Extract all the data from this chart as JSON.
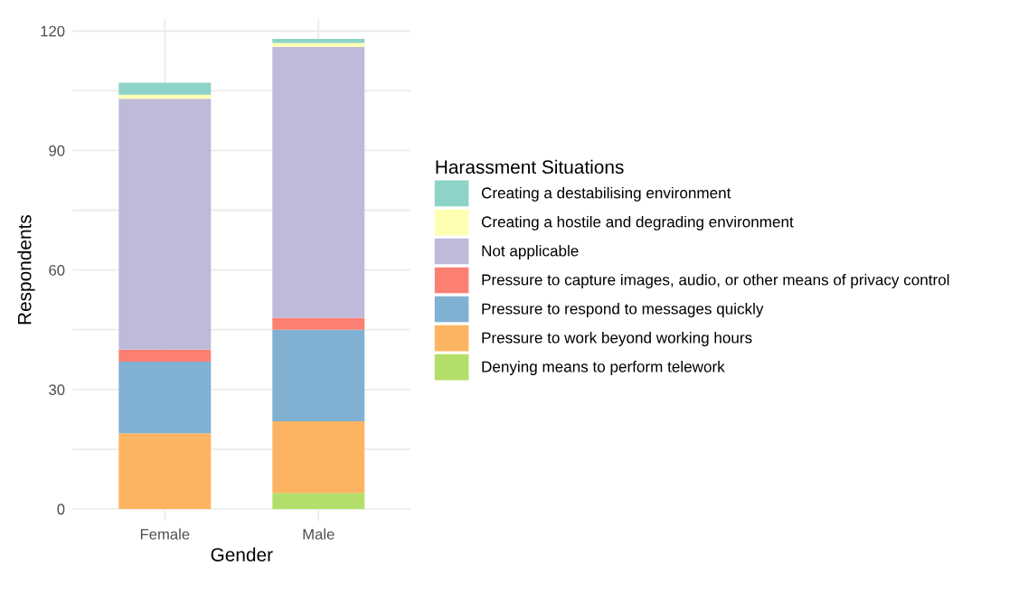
{
  "chart_data": {
    "type": "bar",
    "stacked": true,
    "xlabel": "Gender",
    "ylabel": "Respondents",
    "legend_title": "Harassment Situations",
    "categories": [
      "Female",
      "Male"
    ],
    "series": [
      {
        "name": "Denying means to perform telework",
        "color": "#b3de69",
        "values": [
          0,
          4
        ]
      },
      {
        "name": "Pressure to work beyond working hours",
        "color": "#fdb462",
        "values": [
          19,
          18
        ]
      },
      {
        "name": "Pressure to respond to messages quickly",
        "color": "#80b1d3",
        "values": [
          18,
          23
        ]
      },
      {
        "name": "Pressure to capture images, audio, or other means of privacy control",
        "color": "#fb8072",
        "values": [
          3,
          3
        ]
      },
      {
        "name": "Not applicable",
        "color": "#bebada",
        "values": [
          63,
          68
        ]
      },
      {
        "name": "Creating a hostile and degrading environment",
        "color": "#ffffb3",
        "values": [
          1,
          1
        ]
      },
      {
        "name": "Creating a destabilising environment",
        "color": "#8dd3c7",
        "values": [
          3,
          1
        ]
      }
    ],
    "ylim": [
      -3,
      123
    ],
    "yticks": [
      0,
      {
        "value": 15,
        "label": null
      },
      30,
      {
        "value": 45,
        "label": null
      },
      60,
      {
        "value": 75,
        "label": null
      },
      90,
      {
        "value": 105,
        "label": null
      },
      120
    ],
    "grid": true,
    "legend": "right"
  }
}
